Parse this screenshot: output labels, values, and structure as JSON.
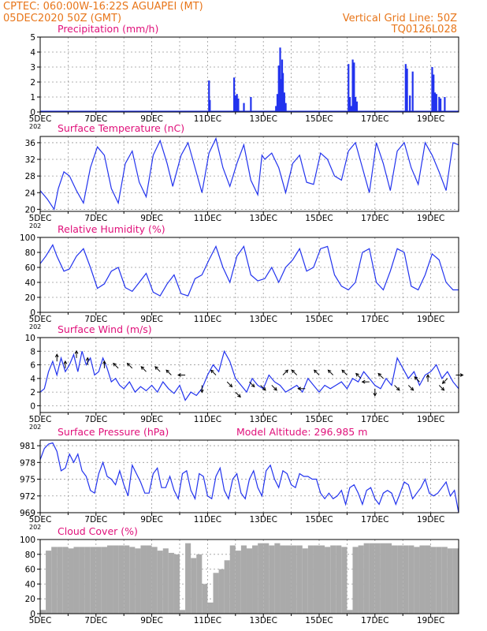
{
  "header": {
    "left_line1": "CPTEC:   060:00W-16:22S   AGUAPEI (MT)",
    "left_line2": "05DEC2020 50Z (GMT)",
    "right_line1": "Vertical Grid Line: 50Z",
    "right_line2": "TQ0126L028"
  },
  "colors": {
    "header": "#e8761a",
    "title": "#e0107a",
    "line": "#2233ee",
    "cloud": "#aaaaaa",
    "axis": "#000000"
  },
  "x_tick_labels": [
    "5DEC",
    "7DEC",
    "9DEC",
    "11DEC",
    "13DEC",
    "15DEC",
    "17DEC",
    "19DEC"
  ],
  "year_fragment": "202",
  "chart_data": [
    {
      "id": "precip",
      "type": "bar",
      "title": "Precipitation (mm/h)",
      "ylim": [
        0,
        5
      ],
      "yticks": [
        "0",
        "1",
        "2",
        "3",
        "4",
        "5"
      ],
      "bars": [
        {
          "day": 11.05,
          "value": 2.1
        },
        {
          "day": 11.08,
          "value": 0.8
        },
        {
          "day": 11.95,
          "value": 2.3
        },
        {
          "day": 12.0,
          "value": 1.1
        },
        {
          "day": 12.05,
          "value": 1.2
        },
        {
          "day": 12.1,
          "value": 0.9
        },
        {
          "day": 12.3,
          "value": 0.6
        },
        {
          "day": 12.55,
          "value": 1.0
        },
        {
          "day": 13.45,
          "value": 0.4
        },
        {
          "day": 13.5,
          "value": 1.2
        },
        {
          "day": 13.55,
          "value": 3.1
        },
        {
          "day": 13.6,
          "value": 4.3
        },
        {
          "day": 13.63,
          "value": 2.2
        },
        {
          "day": 13.67,
          "value": 3.5
        },
        {
          "day": 13.7,
          "value": 2.6
        },
        {
          "day": 13.75,
          "value": 1.3
        },
        {
          "day": 13.8,
          "value": 0.6
        },
        {
          "day": 16.05,
          "value": 3.2
        },
        {
          "day": 16.1,
          "value": 1.0
        },
        {
          "day": 16.15,
          "value": 0.4
        },
        {
          "day": 16.2,
          "value": 3.5
        },
        {
          "day": 16.25,
          "value": 3.3
        },
        {
          "day": 16.3,
          "value": 1.0
        },
        {
          "day": 16.35,
          "value": 0.7
        },
        {
          "day": 18.1,
          "value": 3.2
        },
        {
          "day": 18.15,
          "value": 2.9
        },
        {
          "day": 18.25,
          "value": 1.1
        },
        {
          "day": 18.35,
          "value": 2.7
        },
        {
          "day": 19.05,
          "value": 3.0
        },
        {
          "day": 19.1,
          "value": 2.5
        },
        {
          "day": 19.15,
          "value": 1.3
        },
        {
          "day": 19.2,
          "value": 1.2
        },
        {
          "day": 19.3,
          "value": 1.0
        },
        {
          "day": 19.35,
          "value": 0.9
        },
        {
          "day": 19.5,
          "value": 1.0
        }
      ]
    },
    {
      "id": "temp",
      "type": "line",
      "title": "Surface Temperature (nC)",
      "ylim": [
        19.5,
        37.5
      ],
      "yticks": [
        "20",
        "24",
        "28",
        "32",
        "36"
      ],
      "x": [
        5,
        5.25,
        5.5,
        5.65,
        5.85,
        6.05,
        6.3,
        6.55,
        6.8,
        7.05,
        7.3,
        7.55,
        7.8,
        8.05,
        8.3,
        8.55,
        8.8,
        9.05,
        9.3,
        9.55,
        9.75,
        10.05,
        10.3,
        10.55,
        10.8,
        11.05,
        11.3,
        11.55,
        11.8,
        12.05,
        12.3,
        12.55,
        12.8,
        12.95,
        13.05,
        13.3,
        13.55,
        13.8,
        14.05,
        14.3,
        14.55,
        14.8,
        15.05,
        15.3,
        15.55,
        15.8,
        16.05,
        16.3,
        16.55,
        16.8,
        17.05,
        17.3,
        17.55,
        17.8,
        18.05,
        18.3,
        18.55,
        18.8,
        19.05,
        19.3,
        19.55,
        19.8,
        20.0
      ],
      "y": [
        24.5,
        22.5,
        20.0,
        25.0,
        29.0,
        28.0,
        24.5,
        21.5,
        30.0,
        35.0,
        33.0,
        25.0,
        21.5,
        31.0,
        34.0,
        26.5,
        23.0,
        33.0,
        36.5,
        31.0,
        25.5,
        33.0,
        36.0,
        30.0,
        24.0,
        33.5,
        37.0,
        30.0,
        25.5,
        31.0,
        35.5,
        27.0,
        23.5,
        33.0,
        32.0,
        33.5,
        30.0,
        24.0,
        31.0,
        33.0,
        26.5,
        26.0,
        33.5,
        32.0,
        28.0,
        27.0,
        34.0,
        36.0,
        30.0,
        24.0,
        36.0,
        31.0,
        24.5,
        34.0,
        36.0,
        30.0,
        26.0,
        36.0,
        33.0,
        29.0,
        24.5,
        36.0,
        35.5
      ]
    },
    {
      "id": "rh",
      "type": "line",
      "title": "Relative Humidity (%)",
      "ylim": [
        0,
        100
      ],
      "yticks": [
        "0",
        "20",
        "40",
        "60",
        "80",
        "100"
      ],
      "x": [
        5,
        5.2,
        5.45,
        5.6,
        5.85,
        6.05,
        6.3,
        6.55,
        6.8,
        7.05,
        7.3,
        7.55,
        7.8,
        8.05,
        8.3,
        8.55,
        8.8,
        9.05,
        9.3,
        9.55,
        9.8,
        10.05,
        10.3,
        10.55,
        10.8,
        11.05,
        11.3,
        11.55,
        11.8,
        12.05,
        12.3,
        12.55,
        12.8,
        13.05,
        13.3,
        13.55,
        13.8,
        14.05,
        14.3,
        14.55,
        14.8,
        15.05,
        15.3,
        15.55,
        15.8,
        16.05,
        16.3,
        16.55,
        16.8,
        17.05,
        17.3,
        17.55,
        17.8,
        18.05,
        18.3,
        18.55,
        18.8,
        19.05,
        19.3,
        19.55,
        19.8,
        20.0
      ],
      "y": [
        65,
        75,
        90,
        75,
        55,
        58,
        75,
        85,
        60,
        32,
        38,
        55,
        60,
        33,
        28,
        40,
        52,
        27,
        22,
        38,
        50,
        25,
        22,
        45,
        50,
        70,
        88,
        60,
        40,
        75,
        88,
        50,
        42,
        45,
        60,
        40,
        60,
        70,
        85,
        55,
        60,
        85,
        88,
        50,
        35,
        30,
        40,
        80,
        85,
        40,
        30,
        55,
        85,
        80,
        35,
        30,
        50,
        78,
        70,
        40,
        30,
        30
      ]
    },
    {
      "id": "wind",
      "type": "line",
      "title": "Surface Wind (m/s)",
      "ylim": [
        -1,
        10
      ],
      "yticks": [
        "0",
        "2",
        "4",
        "6",
        "8",
        "10"
      ],
      "x": [
        5,
        5.15,
        5.3,
        5.45,
        5.6,
        5.75,
        5.9,
        6.05,
        6.2,
        6.35,
        6.5,
        6.65,
        6.8,
        6.95,
        7.1,
        7.25,
        7.4,
        7.55,
        7.7,
        7.85,
        8.0,
        8.2,
        8.4,
        8.6,
        8.8,
        9.0,
        9.2,
        9.4,
        9.6,
        9.8,
        10.0,
        10.2,
        10.4,
        10.6,
        10.8,
        11.0,
        11.2,
        11.4,
        11.6,
        11.8,
        12.0,
        12.2,
        12.4,
        12.6,
        12.8,
        13.0,
        13.2,
        13.4,
        13.6,
        13.8,
        14.0,
        14.2,
        14.4,
        14.6,
        14.8,
        15.0,
        15.2,
        15.4,
        15.6,
        15.8,
        16.0,
        16.2,
        16.4,
        16.6,
        16.8,
        17.0,
        17.2,
        17.4,
        17.6,
        17.8,
        18.0,
        18.2,
        18.4,
        18.6,
        18.8,
        19.0,
        19.2,
        19.4,
        19.6,
        19.8,
        20.0
      ],
      "y": [
        2.0,
        2.5,
        5.0,
        6.5,
        4.5,
        7.0,
        5.0,
        6.0,
        7.5,
        5.0,
        8.0,
        6.0,
        7.0,
        4.5,
        5.0,
        7.0,
        5.5,
        3.5,
        4.0,
        3.0,
        2.5,
        3.5,
        2.0,
        2.8,
        2.2,
        3.0,
        2.0,
        3.5,
        2.5,
        1.8,
        3.0,
        0.8,
        2.0,
        1.5,
        2.5,
        4.5,
        6.0,
        5.0,
        8.0,
        6.5,
        4.0,
        3.0,
        2.0,
        4.0,
        3.0,
        2.5,
        4.5,
        3.5,
        3.0,
        2.0,
        2.5,
        3.0,
        2.0,
        4.0,
        3.0,
        2.0,
        3.0,
        2.5,
        3.0,
        3.5,
        2.5,
        4.0,
        3.5,
        5.0,
        4.0,
        3.0,
        2.5,
        4.0,
        3.0,
        7.0,
        5.5,
        4.0,
        5.0,
        3.0,
        4.5,
        5.0,
        6.0,
        4.0,
        5.0,
        3.5,
        2.5
      ]
    },
    {
      "id": "pressure",
      "type": "line",
      "title": "Surface Pressure (hPa)",
      "annotation": "Model Altitude: 296.985 m",
      "ylim": [
        969,
        982
      ],
      "yticks": [
        "969",
        "972",
        "975",
        "978",
        "981"
      ],
      "x": [
        5,
        5.15,
        5.3,
        5.45,
        5.6,
        5.75,
        5.9,
        6.05,
        6.2,
        6.35,
        6.5,
        6.65,
        6.8,
        6.95,
        7.1,
        7.25,
        7.4,
        7.55,
        7.7,
        7.85,
        8.0,
        8.15,
        8.3,
        8.45,
        8.6,
        8.75,
        8.9,
        9.05,
        9.2,
        9.35,
        9.5,
        9.65,
        9.8,
        9.95,
        10.1,
        10.25,
        10.4,
        10.55,
        10.7,
        10.85,
        11.0,
        11.15,
        11.3,
        11.45,
        11.6,
        11.75,
        11.9,
        12.05,
        12.2,
        12.35,
        12.5,
        12.65,
        12.8,
        12.95,
        13.1,
        13.25,
        13.4,
        13.55,
        13.7,
        13.85,
        14.0,
        14.15,
        14.3,
        14.45,
        14.6,
        14.75,
        14.9,
        15.05,
        15.2,
        15.35,
        15.5,
        15.65,
        15.8,
        15.95,
        16.1,
        16.25,
        16.4,
        16.55,
        16.7,
        16.85,
        17.0,
        17.15,
        17.3,
        17.45,
        17.6,
        17.75,
        17.9,
        18.05,
        18.2,
        18.35,
        18.5,
        18.65,
        18.8,
        18.95,
        19.1,
        19.25,
        19.4,
        19.55,
        19.7,
        19.85,
        20.0
      ],
      "y": [
        978.5,
        980.5,
        981.3,
        981.5,
        980.0,
        976.5,
        977.0,
        979.5,
        978.0,
        979.5,
        976.5,
        975.5,
        973.0,
        972.5,
        976.0,
        978.0,
        975.5,
        975.0,
        974.0,
        976.5,
        974.0,
        972.0,
        977.5,
        976.0,
        974.5,
        972.5,
        972.5,
        976.0,
        977.0,
        973.5,
        973.5,
        975.5,
        973.0,
        971.5,
        976.0,
        976.5,
        973.0,
        971.5,
        976.0,
        975.5,
        972.0,
        971.5,
        975.5,
        977.0,
        973.0,
        971.5,
        975.0,
        976.0,
        972.5,
        971.5,
        975.0,
        976.5,
        973.5,
        972.0,
        976.5,
        977.5,
        975.0,
        973.5,
        976.5,
        976.0,
        974.0,
        973.5,
        976.0,
        975.5,
        975.5,
        975.0,
        975.0,
        972.5,
        971.5,
        972.5,
        971.5,
        972.0,
        973.0,
        970.5,
        973.5,
        974.0,
        972.5,
        970.5,
        973.0,
        973.5,
        971.5,
        970.5,
        972.5,
        973.0,
        972.5,
        970.5,
        972.5,
        974.5,
        974.0,
        971.5,
        972.5,
        973.5,
        975.0,
        972.5,
        972.0,
        972.5,
        973.5,
        974.5,
        972.0,
        973.0,
        969.0
      ]
    },
    {
      "id": "cloud",
      "type": "area",
      "title": "Cloud Cover (%)",
      "ylim": [
        0,
        100
      ],
      "yticks": [
        "0",
        "20",
        "40",
        "60",
        "80",
        "100"
      ],
      "x": [
        5,
        5.2,
        5.4,
        5.6,
        5.8,
        6.0,
        6.2,
        6.4,
        6.6,
        6.8,
        7.0,
        7.2,
        7.4,
        7.6,
        7.8,
        8.0,
        8.2,
        8.4,
        8.6,
        8.8,
        9.0,
        9.2,
        9.4,
        9.6,
        9.8,
        10.0,
        10.2,
        10.4,
        10.6,
        10.8,
        11.0,
        11.2,
        11.4,
        11.6,
        11.8,
        12.0,
        12.2,
        12.4,
        12.6,
        12.8,
        13.0,
        13.2,
        13.4,
        13.6,
        13.8,
        14.0,
        14.2,
        14.4,
        14.6,
        14.8,
        15.0,
        15.2,
        15.4,
        15.6,
        15.8,
        16.0,
        16.2,
        16.4,
        16.6,
        16.8,
        17.0,
        17.2,
        17.4,
        17.6,
        17.8,
        18.0,
        18.2,
        18.4,
        18.6,
        18.8,
        19.0,
        19.2,
        19.4,
        19.6,
        19.8,
        20.0
      ],
      "y": [
        5,
        85,
        90,
        90,
        90,
        88,
        90,
        90,
        90,
        90,
        90,
        90,
        92,
        92,
        92,
        92,
        90,
        88,
        92,
        92,
        90,
        85,
        88,
        82,
        80,
        5,
        95,
        75,
        80,
        40,
        15,
        55,
        60,
        72,
        92,
        85,
        92,
        88,
        92,
        95,
        95,
        92,
        95,
        92,
        92,
        92,
        92,
        88,
        92,
        92,
        92,
        90,
        92,
        92,
        90,
        5,
        90,
        92,
        95,
        95,
        95,
        95,
        95,
        92,
        92,
        92,
        92,
        90,
        92,
        92,
        90,
        90,
        90,
        88,
        88,
        88
      ]
    }
  ],
  "wind_arrows": [
    {
      "day": 5.6,
      "value": 6.5,
      "dir": "up"
    },
    {
      "day": 5.9,
      "value": 5.5,
      "dir": "up"
    },
    {
      "day": 6.3,
      "value": 7.0,
      "dir": "up"
    },
    {
      "day": 6.7,
      "value": 6.0,
      "dir": "up"
    },
    {
      "day": 7.3,
      "value": 5.5,
      "dir": "up"
    },
    {
      "day": 7.8,
      "value": 5.5,
      "dir": "upleft"
    },
    {
      "day": 8.3,
      "value": 5.5,
      "dir": "upleft"
    },
    {
      "day": 8.8,
      "value": 5.0,
      "dir": "upleft"
    },
    {
      "day": 9.3,
      "value": 5.0,
      "dir": "upleft"
    },
    {
      "day": 9.7,
      "value": 4.5,
      "dir": "upleft"
    },
    {
      "day": 10.2,
      "value": 4.5,
      "dir": "left"
    },
    {
      "day": 10.8,
      "value": 3.0,
      "dir": "down"
    },
    {
      "day": 11.3,
      "value": 4.5,
      "dir": "upleft"
    },
    {
      "day": 11.7,
      "value": 3.5,
      "dir": "downright"
    },
    {
      "day": 12.0,
      "value": 2.0,
      "dir": "downright"
    },
    {
      "day": 12.5,
      "value": 3.5,
      "dir": "downright"
    },
    {
      "day": 12.9,
      "value": 3.0,
      "dir": "downright"
    },
    {
      "day": 13.3,
      "value": 3.0,
      "dir": "downright"
    },
    {
      "day": 13.7,
      "value": 4.5,
      "dir": "upright"
    },
    {
      "day": 14.2,
      "value": 4.5,
      "dir": "upleft"
    },
    {
      "day": 14.5,
      "value": 2.5,
      "dir": "left"
    },
    {
      "day": 15.0,
      "value": 4.5,
      "dir": "upleft"
    },
    {
      "day": 15.5,
      "value": 4.5,
      "dir": "upleft"
    },
    {
      "day": 16.0,
      "value": 4.5,
      "dir": "upleft"
    },
    {
      "day": 16.5,
      "value": 4.0,
      "dir": "upleft"
    },
    {
      "day": 16.8,
      "value": 3.5,
      "dir": "left"
    },
    {
      "day": 17.0,
      "value": 2.5,
      "dir": "down"
    },
    {
      "day": 17.3,
      "value": 4.0,
      "dir": "upleft"
    },
    {
      "day": 17.7,
      "value": 3.0,
      "dir": "downright"
    },
    {
      "day": 18.2,
      "value": 3.0,
      "dir": "downright"
    },
    {
      "day": 18.6,
      "value": 3.5,
      "dir": "upleft"
    },
    {
      "day": 18.9,
      "value": 3.5,
      "dir": "up"
    },
    {
      "day": 19.3,
      "value": 3.0,
      "dir": "downright"
    },
    {
      "day": 19.6,
      "value": 4.0,
      "dir": "downleft"
    },
    {
      "day": 19.9,
      "value": 4.5,
      "dir": "right"
    }
  ]
}
